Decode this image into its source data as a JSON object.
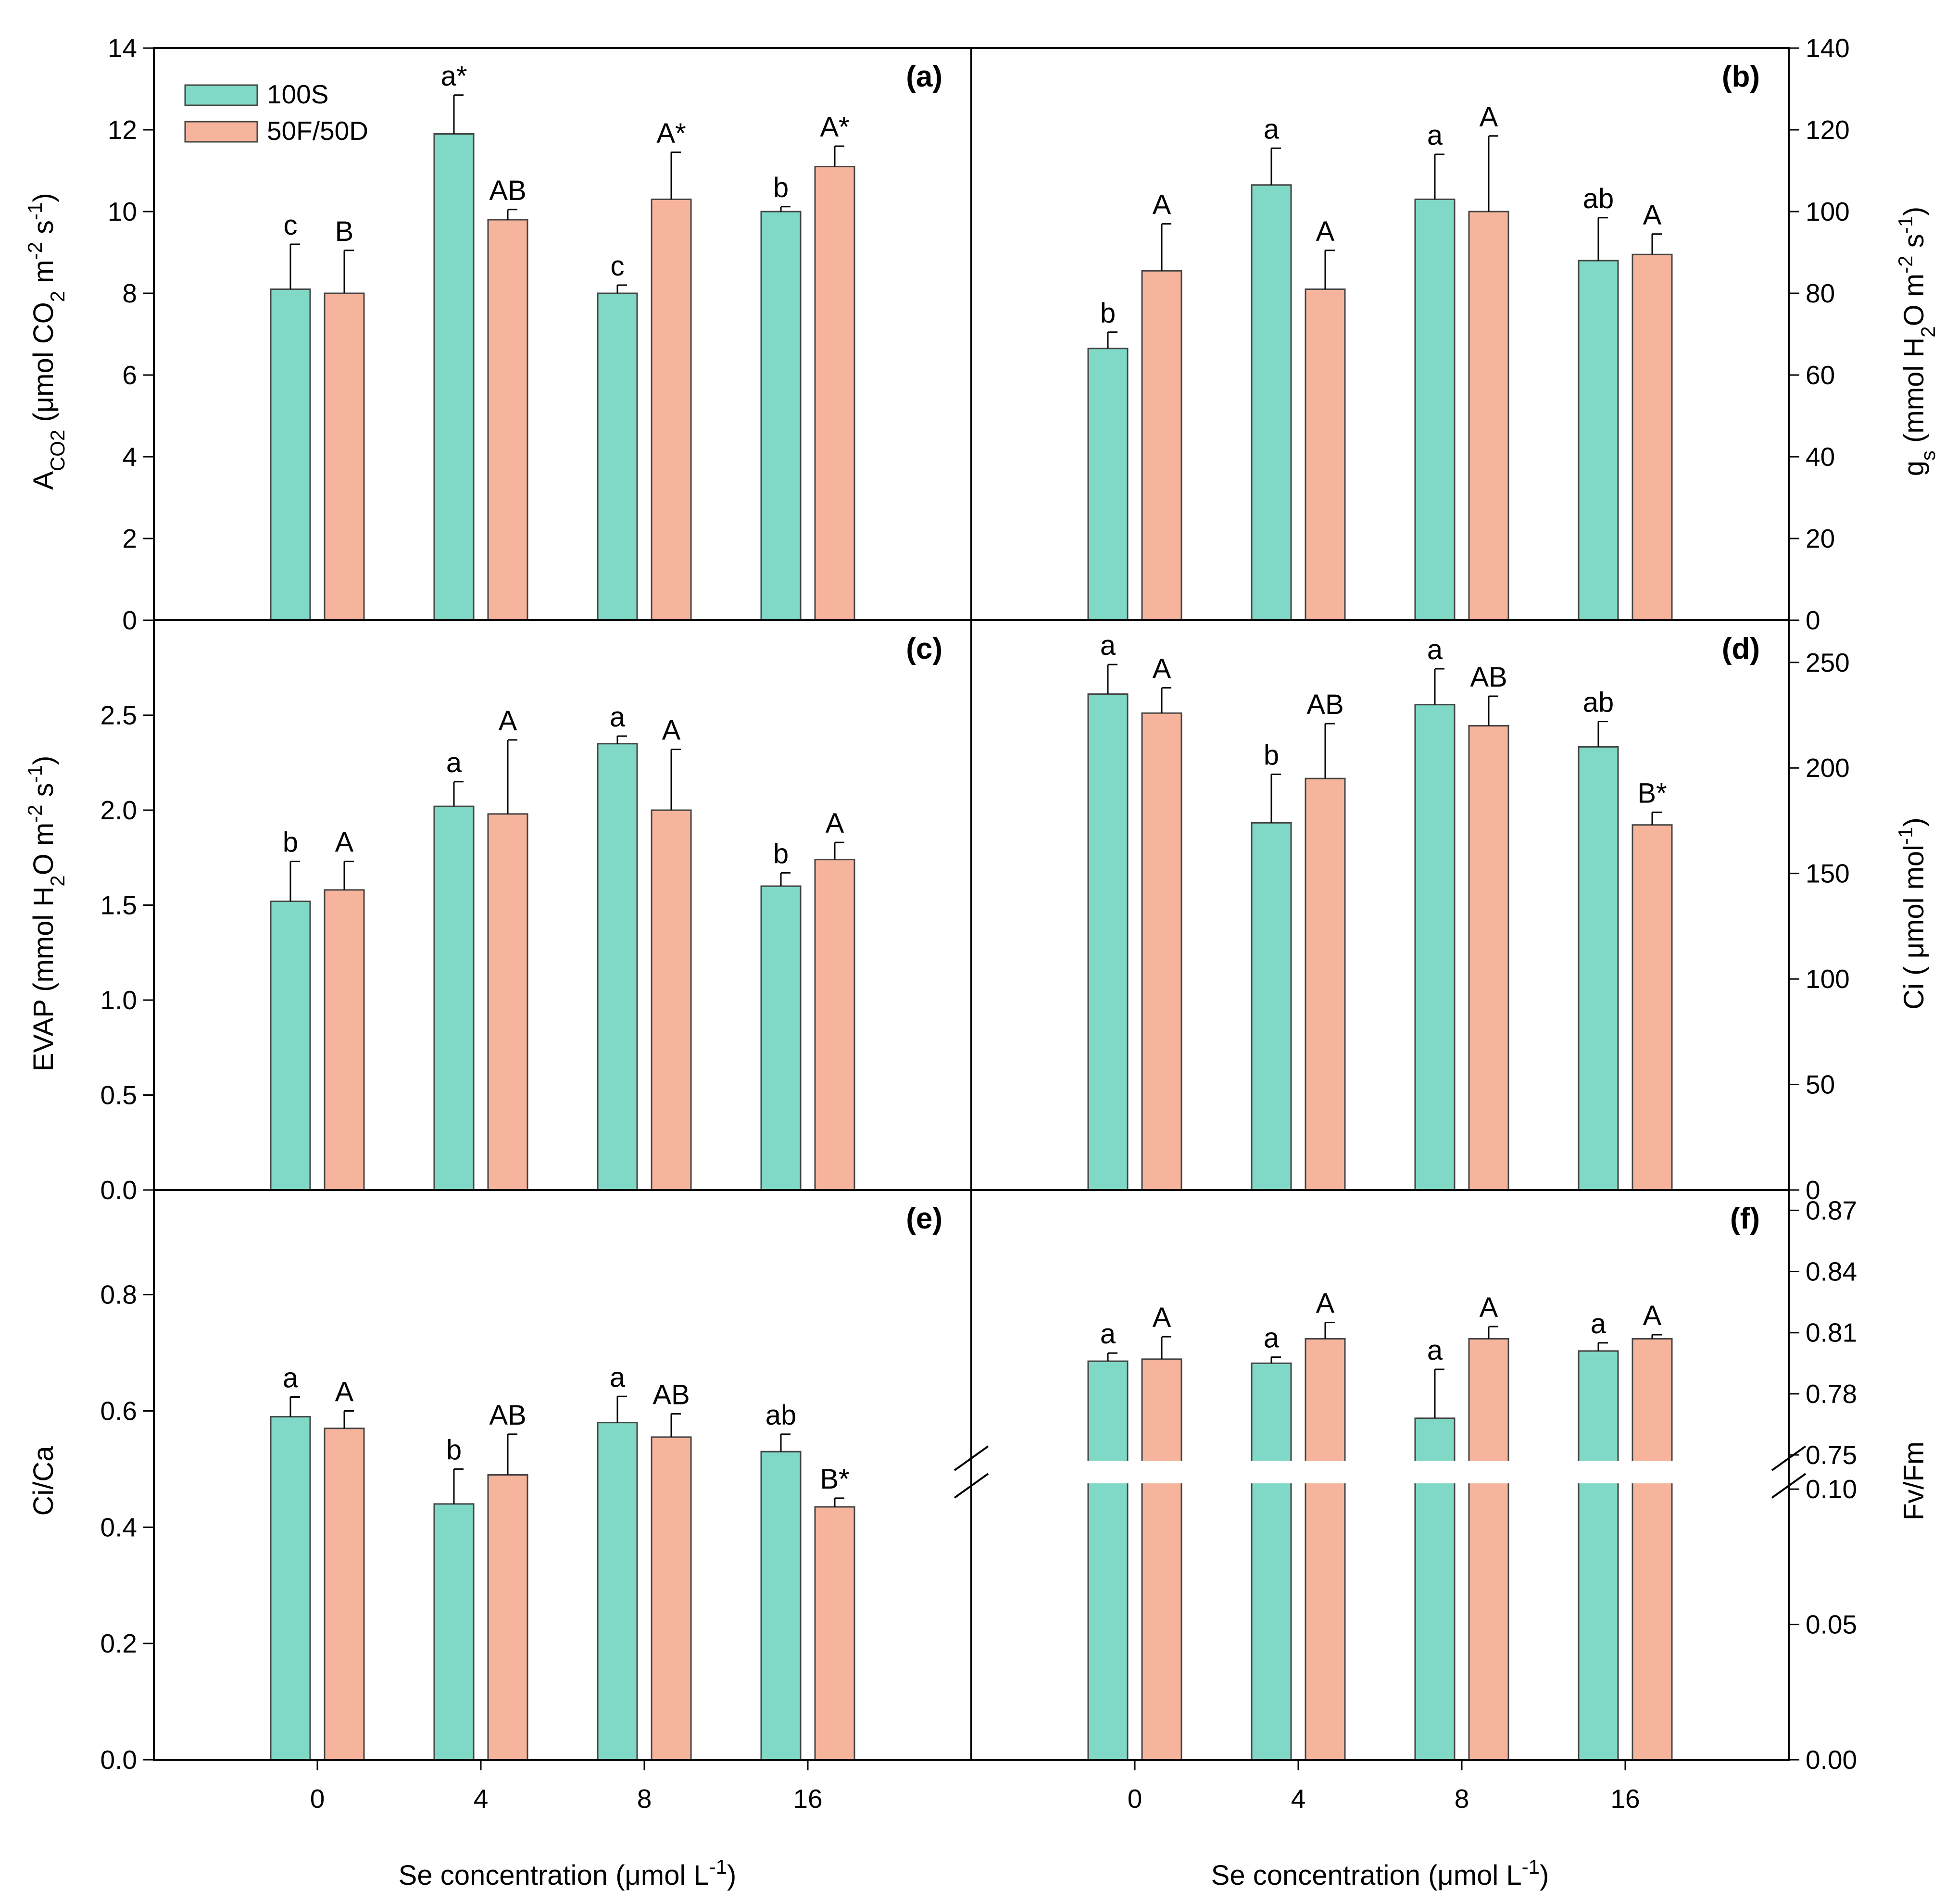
{
  "colors": {
    "series_100S": "#80d9c6",
    "series_50F50D": "#f7b49c"
  },
  "legend": [
    {
      "name": "100S",
      "color": "#80d9c6"
    },
    {
      "name": "50F/50D",
      "color": "#f7b49c"
    }
  ],
  "shared_xlabel": "Se concentration (μmol L",
  "shared_xlabel_sup": "-1",
  "shared_xlabel_tail": ")",
  "chart_data": [
    {
      "panel": "(a)",
      "type": "bar",
      "categories": [
        "0",
        "4",
        "8",
        "16"
      ],
      "ylabel": "ACO2 (μmol CO2 m-2 s-1)",
      "ylim": [
        0,
        14
      ],
      "yticks": [
        0,
        2,
        4,
        6,
        8,
        10,
        12,
        14
      ],
      "series": [
        {
          "name": "100S",
          "values": [
            8.1,
            11.9,
            8.0,
            10.0
          ],
          "errors": [
            1.1,
            0.95,
            0.2,
            0.12
          ],
          "letters": [
            "c",
            "a*",
            "c",
            "b"
          ]
        },
        {
          "name": "50F/50D",
          "values": [
            8.0,
            9.8,
            10.3,
            11.1
          ],
          "errors": [
            1.05,
            0.25,
            1.15,
            0.5
          ],
          "letters": [
            "B",
            "AB",
            "A*",
            "A*"
          ]
        }
      ]
    },
    {
      "panel": "(b)",
      "type": "bar",
      "categories": [
        "0",
        "4",
        "8",
        "16"
      ],
      "ylabel": "gs (mmol H2O m-2 s-1)",
      "ylim": [
        0,
        140
      ],
      "yticks": [
        0,
        20,
        40,
        60,
        80,
        100,
        120,
        140
      ],
      "series": [
        {
          "name": "100S",
          "values": [
            66.5,
            106.5,
            103,
            88
          ],
          "errors": [
            4,
            9,
            11,
            10.5
          ],
          "letters": [
            "b",
            "a",
            "a",
            "ab"
          ]
        },
        {
          "name": "50F/50D",
          "values": [
            85.5,
            81,
            100,
            89.5
          ],
          "errors": [
            11.5,
            9.5,
            18.5,
            5
          ],
          "letters": [
            "A",
            "A",
            "A",
            "A"
          ]
        }
      ]
    },
    {
      "panel": "(c)",
      "type": "bar",
      "categories": [
        "0",
        "4",
        "8",
        "16"
      ],
      "ylabel": "EVAP (mmol H2O m-2 s-1)",
      "ylim": [
        0,
        3.0
      ],
      "yticks": [
        0.0,
        0.5,
        1.0,
        1.5,
        2.0,
        2.5
      ],
      "series": [
        {
          "name": "100S",
          "values": [
            1.52,
            2.02,
            2.35,
            1.6
          ],
          "errors": [
            0.21,
            0.13,
            0.04,
            0.07
          ],
          "letters": [
            "b",
            "a",
            "a",
            "b"
          ]
        },
        {
          "name": "50F/50D",
          "values": [
            1.58,
            1.98,
            2.0,
            1.74
          ],
          "errors": [
            0.15,
            0.39,
            0.32,
            0.09
          ],
          "letters": [
            "A",
            "A",
            "A",
            "A"
          ]
        }
      ]
    },
    {
      "panel": "(d)",
      "type": "bar",
      "categories": [
        "0",
        "4",
        "8",
        "16"
      ],
      "ylabel": "Ci ( μmol mol-1)",
      "ylim": [
        0,
        270
      ],
      "yticks": [
        0,
        50,
        100,
        150,
        200,
        250
      ],
      "series": [
        {
          "name": "100S",
          "values": [
            235,
            174,
            230,
            210
          ],
          "errors": [
            14,
            23,
            17,
            12
          ],
          "letters": [
            "a",
            "b",
            "a",
            "ab"
          ]
        },
        {
          "name": "50F/50D",
          "values": [
            226,
            195,
            220,
            173
          ],
          "errors": [
            12,
            26,
            14,
            6
          ],
          "letters": [
            "A",
            "AB",
            "AB",
            "B*"
          ]
        }
      ]
    },
    {
      "panel": "(e)",
      "type": "bar",
      "categories": [
        "0",
        "4",
        "8",
        "16"
      ],
      "ylabel": "Ci/Ca",
      "ylim": [
        0,
        0.98
      ],
      "yticks": [
        0.0,
        0.2,
        0.4,
        0.6,
        0.8
      ],
      "series": [
        {
          "name": "100S",
          "values": [
            0.59,
            0.44,
            0.58,
            0.53
          ],
          "errors": [
            0.034,
            0.06,
            0.045,
            0.03
          ],
          "letters": [
            "a",
            "b",
            "a",
            "ab"
          ]
        },
        {
          "name": "50F/50D",
          "values": [
            0.57,
            0.49,
            0.555,
            0.435
          ],
          "errors": [
            0.03,
            0.07,
            0.04,
            0.015
          ],
          "letters": [
            "A",
            "AB",
            "AB",
            "B*"
          ]
        }
      ]
    },
    {
      "panel": "(f)",
      "type": "bar",
      "categories": [
        "0",
        "4",
        "8",
        "16"
      ],
      "ylabel": "Fv/Fm",
      "ylim": [
        0,
        0.88
      ],
      "axis_break": [
        0.1,
        0.75
      ],
      "yticks_lower": [
        0.0,
        0.05,
        0.1
      ],
      "yticks_upper": [
        0.75,
        0.78,
        0.81,
        0.84,
        0.87
      ],
      "ytick_labels_lower": [
        "0.00",
        "0.05",
        "0.10"
      ],
      "ytick_labels_upper": [
        "0.75",
        "0.78",
        "0.81",
        "0.84",
        "0.87"
      ],
      "series": [
        {
          "name": "100S",
          "values": [
            0.796,
            0.795,
            0.768,
            0.801
          ],
          "errors": [
            0.004,
            0.003,
            0.024,
            0.004
          ],
          "letters": [
            "a",
            "a",
            "a",
            "a"
          ]
        },
        {
          "name": "50F/50D",
          "values": [
            0.797,
            0.807,
            0.807,
            0.807
          ],
          "errors": [
            0.011,
            0.008,
            0.006,
            0.002
          ],
          "letters": [
            "A",
            "A",
            "A",
            "A"
          ]
        }
      ]
    }
  ]
}
